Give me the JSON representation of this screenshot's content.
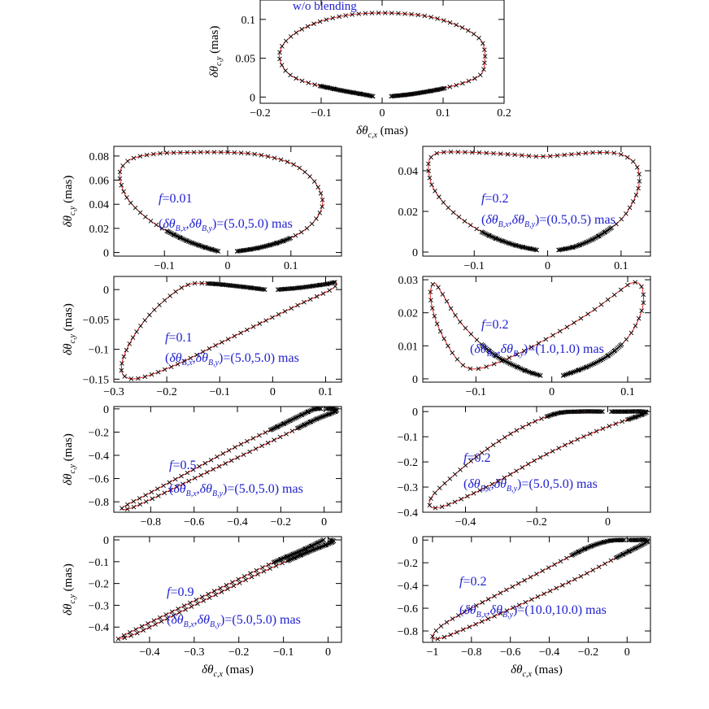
{
  "axis_labels": {
    "x_symbol": "δθ",
    "x_sub": "c,x",
    "y_symbol": "δθ",
    "y_sub": "c,y",
    "unit": "(mas)"
  },
  "annotation_parts": {
    "b_symbol": "δθ",
    "b_x_sub": "B,x",
    "b_y_sub": "B,y",
    "comma": ",",
    "f_var": "f"
  },
  "colors": {
    "curve": "#e02020",
    "marker": "#000000",
    "annotation": "#2020d0"
  },
  "chart_data": [
    {
      "id": "p0",
      "type": "line",
      "title": "",
      "annotation": "w/o blending",
      "f": "",
      "b_values": "",
      "xlim": [
        -0.2,
        0.2
      ],
      "ylim": [
        -0.008,
        0.125
      ],
      "xticks": [
        {
          "v": -0.2,
          "t": "−0.2"
        },
        {
          "v": -0.1,
          "t": "−0.1"
        },
        {
          "v": 0,
          "t": "0"
        },
        {
          "v": 0.1,
          "t": "0.1"
        },
        {
          "v": 0.2,
          "t": "0.2"
        }
      ],
      "yticks": [
        {
          "v": 0,
          "t": "0"
        },
        {
          "v": 0.05,
          "t": "0.05"
        },
        {
          "v": 0.1,
          "t": "0.1"
        }
      ],
      "xlabel": true,
      "ylabel": true,
      "points": [
        [
          0.015,
          0.001
        ],
        [
          0.05,
          0.004
        ],
        [
          0.1,
          0.011
        ],
        [
          0.14,
          0.02
        ],
        [
          0.163,
          0.03
        ],
        [
          0.168,
          0.045
        ],
        [
          0.168,
          0.06
        ],
        [
          0.16,
          0.075
        ],
        [
          0.13,
          0.09
        ],
        [
          0.08,
          0.103
        ],
        [
          0.02,
          0.108
        ],
        [
          -0.04,
          0.107
        ],
        [
          -0.09,
          0.1
        ],
        [
          -0.13,
          0.088
        ],
        [
          -0.158,
          0.072
        ],
        [
          -0.168,
          0.057
        ],
        [
          -0.165,
          0.042
        ],
        [
          -0.15,
          0.028
        ],
        [
          -0.12,
          0.018
        ],
        [
          -0.07,
          0.009
        ],
        [
          -0.035,
          0.004
        ],
        [
          -0.015,
          0.001
        ]
      ]
    },
    {
      "id": "p1",
      "type": "line",
      "title": "",
      "annotation": "",
      "f": "0.01",
      "b_values": "(5.0,5.0) mas",
      "xlim": [
        -0.18,
        0.18
      ],
      "ylim": [
        -0.003,
        0.088
      ],
      "xticks": [
        {
          "v": -0.1,
          "t": "−0.1"
        },
        {
          "v": 0,
          "t": "0"
        },
        {
          "v": 0.1,
          "t": "0.1"
        }
      ],
      "yticks": [
        {
          "v": 0,
          "t": "0"
        },
        {
          "v": 0.02,
          "t": "0.02"
        },
        {
          "v": 0.04,
          "t": "0.04"
        },
        {
          "v": 0.06,
          "t": "0.06"
        },
        {
          "v": 0.08,
          "t": "0.08"
        }
      ],
      "xlabel": false,
      "ylabel": true,
      "points": [
        [
          0.015,
          0.001
        ],
        [
          0.05,
          0.004
        ],
        [
          0.09,
          0.01
        ],
        [
          0.12,
          0.018
        ],
        [
          0.14,
          0.028
        ],
        [
          0.15,
          0.04
        ],
        [
          0.145,
          0.052
        ],
        [
          0.13,
          0.063
        ],
        [
          0.1,
          0.074
        ],
        [
          0.05,
          0.081
        ],
        [
          0.0,
          0.083
        ],
        [
          -0.06,
          0.083
        ],
        [
          -0.11,
          0.082
        ],
        [
          -0.15,
          0.078
        ],
        [
          -0.168,
          0.07
        ],
        [
          -0.17,
          0.06
        ],
        [
          -0.16,
          0.046
        ],
        [
          -0.14,
          0.034
        ],
        [
          -0.11,
          0.022
        ],
        [
          -0.07,
          0.011
        ],
        [
          -0.04,
          0.005
        ],
        [
          -0.015,
          0.001
        ]
      ]
    },
    {
      "id": "p2",
      "type": "line",
      "title": "",
      "annotation": "",
      "f": "0.2",
      "b_values": "(0.5,0.5) mas",
      "xlim": [
        -0.17,
        0.14
      ],
      "ylim": [
        -0.002,
        0.052
      ],
      "xticks": [
        {
          "v": -0.1,
          "t": "−0.1"
        },
        {
          "v": 0,
          "t": "0"
        },
        {
          "v": 0.1,
          "t": "0.1"
        }
      ],
      "yticks": [
        {
          "v": 0,
          "t": "0"
        },
        {
          "v": 0.02,
          "t": "0.02"
        },
        {
          "v": 0.04,
          "t": "0.04"
        }
      ],
      "xlabel": false,
      "ylabel": false,
      "points": [
        [
          0.015,
          0.001
        ],
        [
          0.04,
          0.003
        ],
        [
          0.07,
          0.008
        ],
        [
          0.1,
          0.016
        ],
        [
          0.118,
          0.026
        ],
        [
          0.125,
          0.035
        ],
        [
          0.12,
          0.043
        ],
        [
          0.1,
          0.048
        ],
        [
          0.07,
          0.049
        ],
        [
          0.03,
          0.048
        ],
        [
          -0.01,
          0.047
        ],
        [
          -0.05,
          0.048
        ],
        [
          -0.1,
          0.049
        ],
        [
          -0.145,
          0.049
        ],
        [
          -0.16,
          0.046
        ],
        [
          -0.162,
          0.04
        ],
        [
          -0.155,
          0.031
        ],
        [
          -0.13,
          0.02
        ],
        [
          -0.09,
          0.01
        ],
        [
          -0.05,
          0.004
        ],
        [
          -0.015,
          0.001
        ]
      ]
    },
    {
      "id": "p3",
      "type": "line",
      "title": "",
      "annotation": "",
      "f": "0.1",
      "b_values": "(5.0,5.0) mas",
      "xlim": [
        -0.3,
        0.13
      ],
      "ylim": [
        -0.155,
        0.022
      ],
      "xticks": [
        {
          "v": -0.3,
          "t": "−0.3"
        },
        {
          "v": -0.2,
          "t": "−0.2"
        },
        {
          "v": -0.1,
          "t": "−0.1"
        },
        {
          "v": 0,
          "t": "0"
        },
        {
          "v": 0.1,
          "t": "0.1"
        }
      ],
      "yticks": [
        {
          "v": -0.15,
          "t": "−0.15"
        },
        {
          "v": -0.1,
          "t": "−0.1"
        },
        {
          "v": -0.05,
          "t": "−0.05"
        },
        {
          "v": 0,
          "t": "0"
        }
      ],
      "xlabel": false,
      "ylabel": true,
      "points": [
        [
          0.01,
          0.0
        ],
        [
          0.05,
          0.003
        ],
        [
          0.1,
          0.009
        ],
        [
          0.12,
          0.012
        ],
        [
          0.11,
          0.0
        ],
        [
          0.05,
          -0.025
        ],
        [
          -0.02,
          -0.055
        ],
        [
          -0.1,
          -0.09
        ],
        [
          -0.18,
          -0.125
        ],
        [
          -0.25,
          -0.148
        ],
        [
          -0.28,
          -0.145
        ],
        [
          -0.285,
          -0.125
        ],
        [
          -0.27,
          -0.09
        ],
        [
          -0.24,
          -0.05
        ],
        [
          -0.2,
          -0.015
        ],
        [
          -0.16,
          0.008
        ],
        [
          -0.12,
          0.01
        ],
        [
          -0.06,
          0.005
        ],
        [
          -0.015,
          0.0
        ]
      ]
    },
    {
      "id": "p4",
      "type": "line",
      "title": "",
      "annotation": "",
      "f": "0.2",
      "b_values": "(1.0,1.0) mas",
      "xlim": [
        -0.17,
        0.13
      ],
      "ylim": [
        -0.001,
        0.031
      ],
      "xticks": [
        {
          "v": -0.1,
          "t": "−0.1"
        },
        {
          "v": 0,
          "t": "0"
        },
        {
          "v": 0.1,
          "t": "0.1"
        }
      ],
      "yticks": [
        {
          "v": 0,
          "t": "0"
        },
        {
          "v": 0.01,
          "t": "0.01"
        },
        {
          "v": 0.02,
          "t": "0.02"
        },
        {
          "v": 0.03,
          "t": "0.03"
        }
      ],
      "xlabel": false,
      "ylabel": false,
      "points": [
        [
          0.015,
          0.001
        ],
        [
          0.05,
          0.004
        ],
        [
          0.08,
          0.008
        ],
        [
          0.105,
          0.014
        ],
        [
          0.12,
          0.022
        ],
        [
          0.118,
          0.028
        ],
        [
          0.105,
          0.029
        ],
        [
          0.08,
          0.025
        ],
        [
          0.05,
          0.02
        ],
        [
          0.0,
          0.013
        ],
        [
          -0.05,
          0.007
        ],
        [
          -0.1,
          0.003
        ],
        [
          -0.125,
          0.006
        ],
        [
          -0.15,
          0.016
        ],
        [
          -0.16,
          0.025
        ],
        [
          -0.155,
          0.029
        ],
        [
          -0.145,
          0.026
        ],
        [
          -0.12,
          0.017
        ],
        [
          -0.08,
          0.008
        ],
        [
          -0.04,
          0.003
        ],
        [
          -0.015,
          0.001
        ]
      ]
    },
    {
      "id": "p5",
      "type": "line",
      "title": "",
      "annotation": "",
      "f": "0.5",
      "b_values": "(5.0,5.0) mas",
      "xlim": [
        -0.97,
        0.08
      ],
      "ylim": [
        -0.89,
        0.02
      ],
      "xticks": [
        {
          "v": -0.8,
          "t": "−0.8"
        },
        {
          "v": -0.6,
          "t": "−0.6"
        },
        {
          "v": -0.4,
          "t": "−0.4"
        },
        {
          "v": -0.2,
          "t": "−0.2"
        },
        {
          "v": 0,
          "t": "0"
        }
      ],
      "yticks": [
        {
          "v": -0.8,
          "t": "−0.8"
        },
        {
          "v": -0.6,
          "t": "−0.6"
        },
        {
          "v": -0.4,
          "t": "−0.4"
        },
        {
          "v": -0.2,
          "t": "−0.2"
        },
        {
          "v": 0,
          "t": "0"
        }
      ],
      "xlabel": false,
      "ylabel": true,
      "points": [
        [
          0.01,
          0.0
        ],
        [
          0.04,
          0.0
        ],
        [
          0.055,
          -0.02
        ],
        [
          -0.05,
          -0.1
        ],
        [
          -0.2,
          -0.24
        ],
        [
          -0.4,
          -0.42
        ],
        [
          -0.6,
          -0.6
        ],
        [
          -0.8,
          -0.78
        ],
        [
          -0.9,
          -0.86
        ],
        [
          -0.93,
          -0.85
        ],
        [
          -0.82,
          -0.74
        ],
        [
          -0.6,
          -0.52
        ],
        [
          -0.4,
          -0.32
        ],
        [
          -0.2,
          -0.14
        ],
        [
          -0.08,
          -0.03
        ],
        [
          -0.04,
          0.0
        ],
        [
          -0.015,
          0.0
        ]
      ]
    },
    {
      "id": "p6",
      "type": "line",
      "title": "",
      "annotation": "",
      "f": "0.2",
      "b_values": "(5.0,5.0) mas",
      "xlim": [
        -0.52,
        0.12
      ],
      "ylim": [
        -0.4,
        0.02
      ],
      "xticks": [
        {
          "v": -0.4,
          "t": "−0.4"
        },
        {
          "v": -0.2,
          "t": "−0.2"
        },
        {
          "v": 0,
          "t": "0"
        }
      ],
      "yticks": [
        {
          "v": -0.4,
          "t": "−0.4"
        },
        {
          "v": -0.3,
          "t": "−0.3"
        },
        {
          "v": -0.2,
          "t": "−0.2"
        },
        {
          "v": -0.1,
          "t": "−0.1"
        },
        {
          "v": 0,
          "t": "0"
        }
      ],
      "xlabel": false,
      "ylabel": false,
      "points": [
        [
          0.01,
          0.0
        ],
        [
          0.05,
          0.0
        ],
        [
          0.1,
          0.0
        ],
        [
          0.1,
          -0.01
        ],
        [
          0.0,
          -0.06
        ],
        [
          -0.1,
          -0.12
        ],
        [
          -0.2,
          -0.19
        ],
        [
          -0.3,
          -0.27
        ],
        [
          -0.4,
          -0.34
        ],
        [
          -0.47,
          -0.38
        ],
        [
          -0.5,
          -0.375
        ],
        [
          -0.49,
          -0.33
        ],
        [
          -0.43,
          -0.25
        ],
        [
          -0.35,
          -0.16
        ],
        [
          -0.25,
          -0.07
        ],
        [
          -0.15,
          -0.01
        ],
        [
          -0.08,
          0.0
        ],
        [
          -0.015,
          0.0
        ]
      ]
    },
    {
      "id": "p7",
      "type": "line",
      "title": "",
      "annotation": "",
      "f": "0.9",
      "b_values": "(5.0,5.0) mas",
      "xlim": [
        -0.48,
        0.03
      ],
      "ylim": [
        -0.47,
        0.015
      ],
      "xticks": [
        {
          "v": -0.4,
          "t": "−0.4"
        },
        {
          "v": -0.3,
          "t": "−0.3"
        },
        {
          "v": -0.2,
          "t": "−0.2"
        },
        {
          "v": -0.1,
          "t": "−0.1"
        },
        {
          "v": 0,
          "t": "0"
        }
      ],
      "yticks": [
        {
          "v": -0.4,
          "t": "−0.4"
        },
        {
          "v": -0.3,
          "t": "−0.3"
        },
        {
          "v": -0.2,
          "t": "−0.2"
        },
        {
          "v": -0.1,
          "t": "−0.1"
        },
        {
          "v": 0,
          "t": "0"
        }
      ],
      "xlabel": true,
      "ylabel": true,
      "points": [
        [
          0.005,
          0.0
        ],
        [
          0.01,
          -0.01
        ],
        [
          -0.05,
          -0.06
        ],
        [
          -0.15,
          -0.15
        ],
        [
          -0.25,
          -0.25
        ],
        [
          -0.35,
          -0.35
        ],
        [
          -0.43,
          -0.43
        ],
        [
          -0.47,
          -0.455
        ],
        [
          -0.44,
          -0.42
        ],
        [
          -0.34,
          -0.32
        ],
        [
          -0.24,
          -0.22
        ],
        [
          -0.14,
          -0.12
        ],
        [
          -0.05,
          -0.04
        ],
        [
          -0.01,
          0.0
        ]
      ]
    },
    {
      "id": "p8",
      "type": "line",
      "title": "",
      "annotation": "",
      "f": "0.2",
      "b_values": "(10.0,10.0) mas",
      "xlim": [
        -1.05,
        0.12
      ],
      "ylim": [
        -0.9,
        0.03
      ],
      "xticks": [
        {
          "v": -1,
          "t": "−1"
        },
        {
          "v": -0.8,
          "t": "−0.8"
        },
        {
          "v": -0.6,
          "t": "−0.6"
        },
        {
          "v": -0.4,
          "t": "−0.4"
        },
        {
          "v": -0.2,
          "t": "−0.2"
        },
        {
          "v": 0,
          "t": "0"
        }
      ],
      "yticks": [
        {
          "v": -0.8,
          "t": "−0.8"
        },
        {
          "v": -0.6,
          "t": "−0.6"
        },
        {
          "v": -0.4,
          "t": "−0.4"
        },
        {
          "v": -0.2,
          "t": "−0.2"
        },
        {
          "v": 0,
          "t": "0"
        }
      ],
      "xlabel": true,
      "ylabel": false,
      "points": [
        [
          0.01,
          0.0
        ],
        [
          0.05,
          0.0
        ],
        [
          0.1,
          0.0
        ],
        [
          0.09,
          -0.03
        ],
        [
          -0.05,
          -0.15
        ],
        [
          -0.25,
          -0.33
        ],
        [
          -0.5,
          -0.53
        ],
        [
          -0.75,
          -0.72
        ],
        [
          -0.95,
          -0.86
        ],
        [
          -1.0,
          -0.85
        ],
        [
          -0.95,
          -0.75
        ],
        [
          -0.8,
          -0.6
        ],
        [
          -0.6,
          -0.42
        ],
        [
          -0.4,
          -0.24
        ],
        [
          -0.22,
          -0.08
        ],
        [
          -0.1,
          -0.01
        ],
        [
          -0.015,
          0.0
        ]
      ]
    }
  ]
}
